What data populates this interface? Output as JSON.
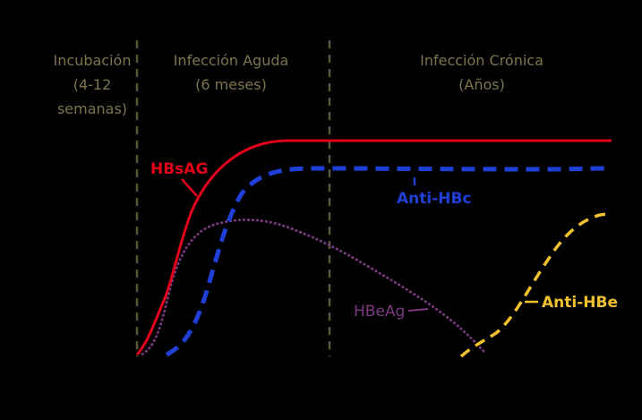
{
  "phases": {
    "incubation": {
      "line1": "Incubación",
      "line2": "(4-12",
      "line3": "semanas)"
    },
    "acute": {
      "line1": "Infección Aguda",
      "line2": "(6 meses)"
    },
    "chronic": {
      "line1": "Infección Crónica",
      "line2": "(Años)"
    }
  },
  "markers": [
    {
      "id": "hbsag",
      "label": "HBsAG",
      "color": "#e3001b",
      "style": "solid"
    },
    {
      "id": "anti-hbc",
      "label": "Anti-HBc",
      "color": "#1f3fd6",
      "style": "dashed"
    },
    {
      "id": "hbeag",
      "label": "HBeAg",
      "color": "#7b3a80",
      "style": "dotted"
    },
    {
      "id": "anti-hbe",
      "label": "Anti-HBe",
      "color": "#f2c12e",
      "style": "dashed"
    }
  ],
  "colors": {
    "background": "#000000",
    "divider": "#5c5638",
    "phase_text": "#7d7450"
  }
}
